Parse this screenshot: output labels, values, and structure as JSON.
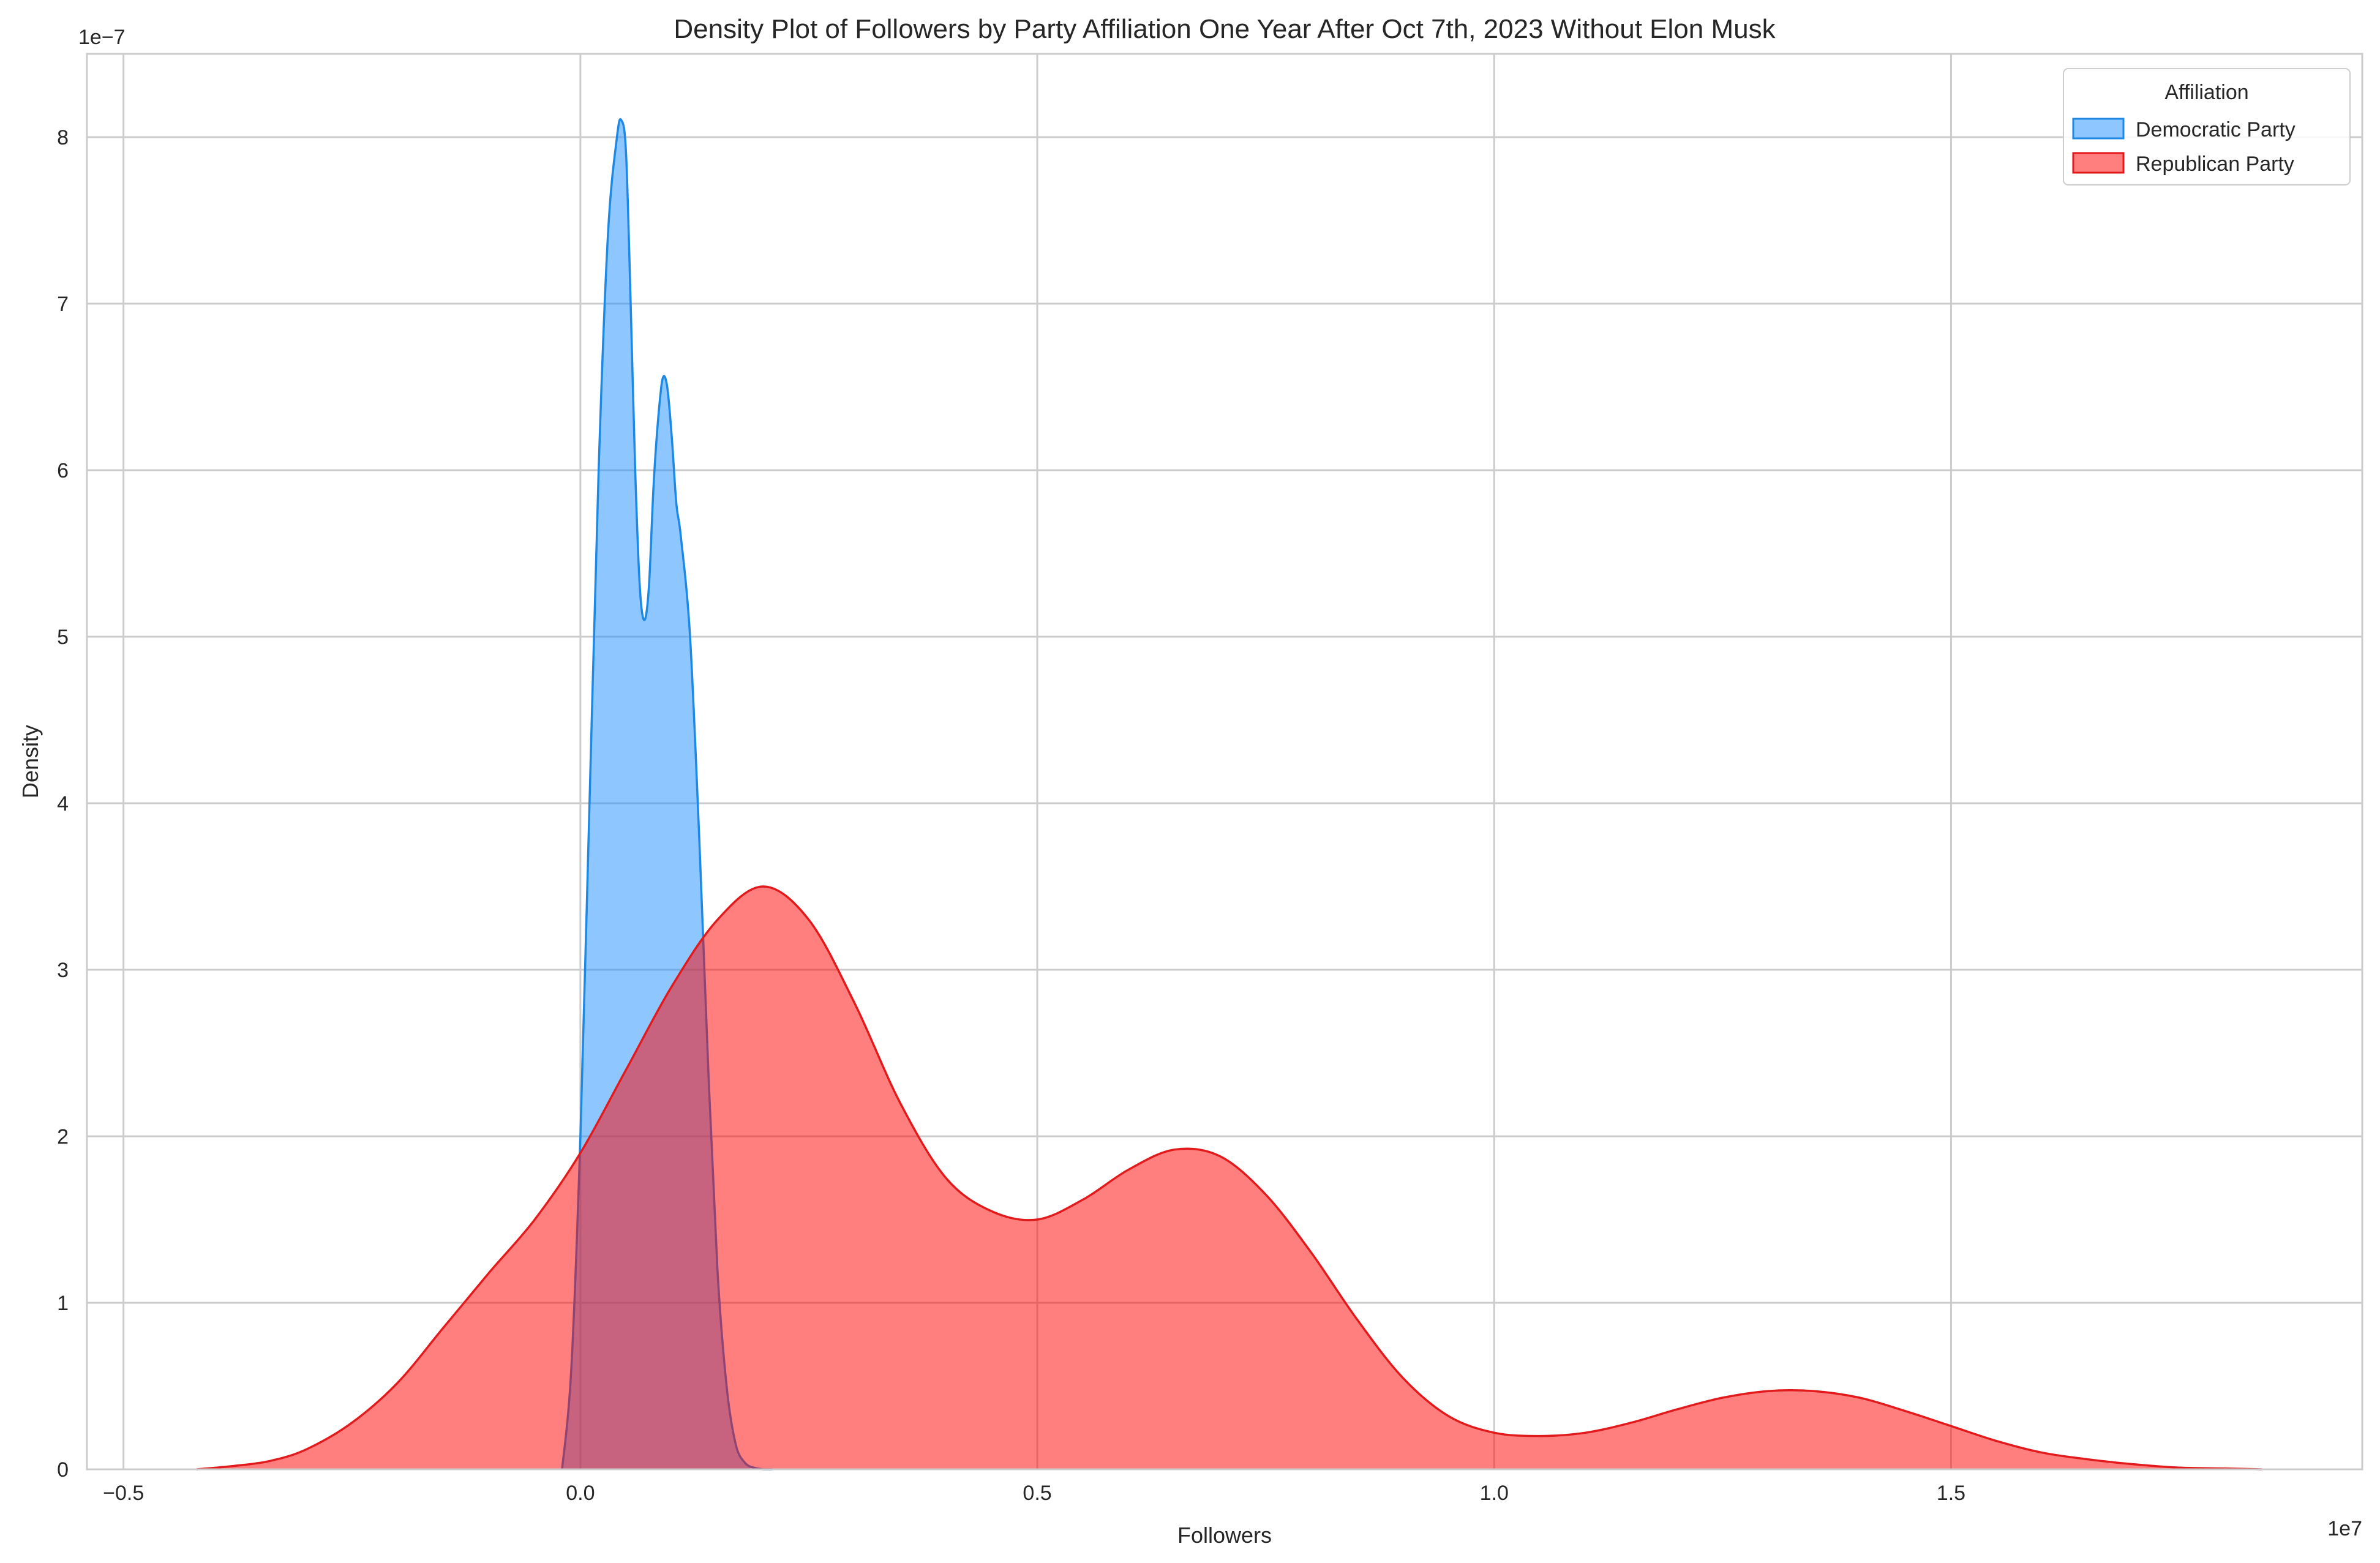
{
  "chart_data": {
    "type": "area",
    "title": "Density Plot of Followers by Party Affiliation One Year After Oct 7th, 2023 Without Elon Musk",
    "xlabel": "Followers",
    "ylabel": "Density",
    "x_offset_label": "1e7",
    "y_offset_label": "1e−7",
    "x_scale": 10000000,
    "y_scale": 1e-07,
    "xlim": [
      -0.54,
      1.95
    ],
    "ylim": [
      0,
      8.5
    ],
    "x_ticks": [
      -0.5,
      0.0,
      0.5,
      1.0,
      1.5
    ],
    "x_tick_labels": [
      "−0.5",
      "0.0",
      "0.5",
      "1.0",
      "1.5"
    ],
    "y_ticks": [
      0,
      1,
      2,
      3,
      4,
      5,
      6,
      7,
      8
    ],
    "y_tick_labels": [
      "0",
      "1",
      "2",
      "3",
      "4",
      "5",
      "6",
      "7",
      "8"
    ],
    "grid": true,
    "legend": {
      "title": "Affiliation",
      "placement": "top-right"
    },
    "series": [
      {
        "name": "Democratic Party",
        "fill_color": "#1e90ff",
        "line_color": "#1e88e5",
        "x": [
          -0.02,
          -0.01,
          0.0,
          0.01,
          0.02,
          0.03,
          0.04,
          0.045,
          0.05,
          0.055,
          0.06,
          0.065,
          0.07,
          0.075,
          0.08,
          0.085,
          0.09,
          0.095,
          0.1,
          0.105,
          0.11,
          0.12,
          0.13,
          0.14,
          0.15,
          0.16,
          0.17,
          0.18,
          0.19,
          0.2,
          0.21
        ],
        "y": [
          0.0,
          0.6,
          2.0,
          4.0,
          6.0,
          7.4,
          8.0,
          8.1,
          7.9,
          7.0,
          6.0,
          5.3,
          5.1,
          5.3,
          5.9,
          6.3,
          6.55,
          6.5,
          6.2,
          5.8,
          5.6,
          5.0,
          3.8,
          2.4,
          1.2,
          0.5,
          0.15,
          0.04,
          0.01,
          0.0,
          0.0
        ]
      },
      {
        "name": "Republican Party",
        "fill_color": "#ff0000",
        "line_color": "#e31a1c",
        "x": [
          -0.42,
          -0.38,
          -0.34,
          -0.3,
          -0.25,
          -0.2,
          -0.15,
          -0.1,
          -0.05,
          0.0,
          0.05,
          0.1,
          0.15,
          0.2,
          0.25,
          0.3,
          0.35,
          0.4,
          0.45,
          0.5,
          0.55,
          0.6,
          0.65,
          0.7,
          0.75,
          0.8,
          0.85,
          0.9,
          0.95,
          1.0,
          1.05,
          1.1,
          1.15,
          1.2,
          1.25,
          1.3,
          1.35,
          1.4,
          1.45,
          1.5,
          1.55,
          1.6,
          1.65,
          1.7,
          1.75,
          1.8,
          1.84
        ],
        "y": [
          0.0,
          0.02,
          0.05,
          0.12,
          0.28,
          0.52,
          0.85,
          1.18,
          1.5,
          1.9,
          2.4,
          2.9,
          3.3,
          3.5,
          3.3,
          2.8,
          2.2,
          1.75,
          1.55,
          1.5,
          1.62,
          1.8,
          1.92,
          1.88,
          1.65,
          1.3,
          0.9,
          0.55,
          0.32,
          0.22,
          0.2,
          0.22,
          0.28,
          0.36,
          0.43,
          0.47,
          0.47,
          0.43,
          0.35,
          0.26,
          0.17,
          0.1,
          0.06,
          0.03,
          0.01,
          0.005,
          0.0
        ]
      }
    ]
  }
}
